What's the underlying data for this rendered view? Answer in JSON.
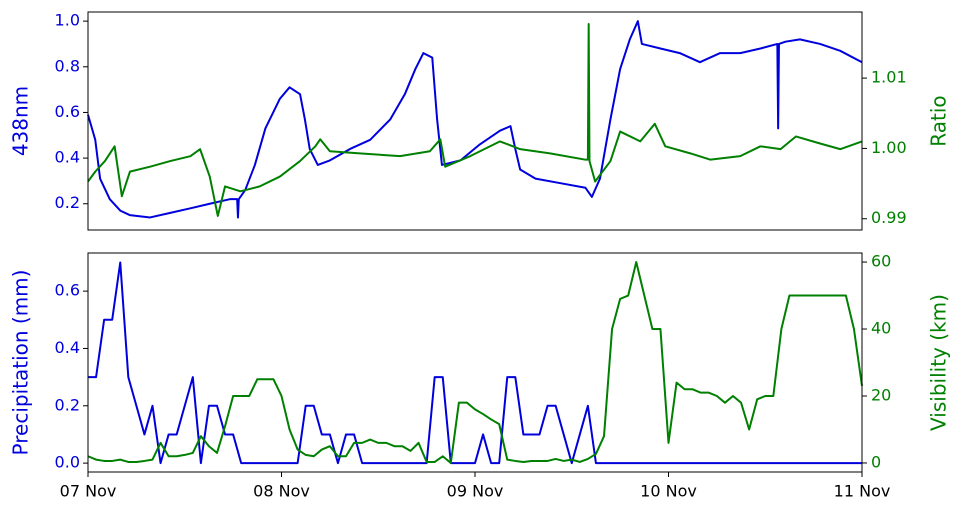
{
  "chart_data": [
    {
      "type": "line",
      "ylabel": "438nm",
      "y2label": "Ratio",
      "xlim": [
        0,
        96
      ],
      "ylim": [
        0.085,
        1.04
      ],
      "yticks": [
        0.2,
        0.4,
        0.6,
        0.8,
        {
          "value": 1,
          "label": "1.0"
        }
      ],
      "y2lim": [
        0.9884,
        1.0194
      ],
      "y2ticks": [
        0.99,
        {
          "value": 1,
          "label": "1.00"
        },
        1.01
      ],
      "series": [
        {
          "name": "438nm",
          "color": "#0000dd",
          "axis": "y",
          "x": [
            0,
            0.9,
            1.5,
            2.7,
            4.0,
            5.2,
            7.7,
            10.2,
            12.7,
            15.1,
            17.6,
            18.5,
            18.6,
            18.7,
            19.5,
            20.7,
            22.0,
            23.8,
            25.0,
            26.3,
            26.9,
            27.5,
            28.5,
            30.0,
            32.5,
            35.0,
            37.5,
            39.3,
            40.6,
            41.6,
            42.7,
            43.3,
            43.9,
            46.2,
            48.6,
            51.1,
            52.4,
            53.0,
            53.6,
            55.5,
            58.6,
            61.7,
            62.5,
            63.5,
            64.8,
            66.0,
            67.2,
            68.2,
            68.7,
            71.0,
            73.4,
            75.9,
            78.4,
            80.9,
            83.4,
            85.5,
            85.6,
            85.7,
            86.5,
            88.3,
            90.8,
            93.3,
            96
          ],
          "values": [
            0.59,
            0.48,
            0.31,
            0.22,
            0.17,
            0.15,
            0.14,
            0.16,
            0.18,
            0.2,
            0.22,
            0.22,
            0.14,
            0.22,
            0.26,
            0.37,
            0.53,
            0.66,
            0.71,
            0.68,
            0.57,
            0.44,
            0.37,
            0.39,
            0.44,
            0.48,
            0.57,
            0.68,
            0.79,
            0.86,
            0.84,
            0.57,
            0.37,
            0.39,
            0.46,
            0.52,
            0.54,
            0.44,
            0.35,
            0.31,
            0.29,
            0.27,
            0.23,
            0.31,
            0.57,
            0.79,
            0.92,
            1.0,
            0.9,
            0.88,
            0.86,
            0.82,
            0.86,
            0.86,
            0.88,
            0.9,
            0.53,
            0.9,
            0.91,
            0.92,
            0.9,
            0.87,
            0.82
          ]
        },
        {
          "name": "Ratio",
          "color": "#008000",
          "axis": "y2",
          "x": [
            0,
            0.9,
            2.1,
            3.3,
            4.2,
            5.2,
            7.7,
            10.2,
            12.7,
            13.9,
            15.1,
            16.1,
            17.0,
            18.9,
            21.3,
            23.8,
            26.3,
            28.2,
            28.8,
            30.0,
            33.7,
            38.7,
            42.4,
            43.7,
            44.3,
            47.4,
            51.1,
            53.6,
            57.3,
            61.7,
            62.0,
            62.1,
            62.2,
            62.9,
            64.8,
            66.0,
            68.5,
            70.3,
            71.6,
            74.7,
            77.2,
            80.9,
            83.4,
            85.9,
            87.8,
            90.8,
            93.3,
            96
          ],
          "values": [
            0.9953,
            0.9967,
            0.9982,
            1.0003,
            0.9932,
            0.9967,
            0.9974,
            0.9982,
            0.9989,
            0.9999,
            0.996,
            0.9904,
            0.9946,
            0.9939,
            0.9946,
            0.996,
            0.9982,
            1.0003,
            1.0013,
            0.9996,
            0.9993,
            0.9989,
            0.9996,
            1.0013,
            0.9974,
            0.9989,
            1.001,
            0.9999,
            0.9993,
            0.9984,
            0.9984,
            1.0177,
            0.9982,
            0.9953,
            0.9982,
            1.0024,
            1.001,
            1.0035,
            1.0003,
            0.9993,
            0.9984,
            0.9989,
            1.0003,
            0.9999,
            1.0017,
            1.0007,
            0.9999,
            1.001
          ]
        }
      ]
    },
    {
      "type": "line",
      "ylabel": "Precipitation (mm)",
      "y2label": "Visibility (km)",
      "xlim": [
        0,
        96
      ],
      "xticks": [
        {
          "value": 0,
          "label": "07 Nov"
        },
        {
          "value": 24,
          "label": "08 Nov"
        },
        {
          "value": 48,
          "label": "09 Nov"
        },
        {
          "value": 72,
          "label": "10 Nov"
        },
        {
          "value": 96,
          "label": "11 Nov"
        }
      ],
      "ylim": [
        -0.031,
        0.733
      ],
      "yticks": [
        {
          "value": 0,
          "label": "0.0"
        },
        0.2,
        0.4,
        0.6
      ],
      "y2lim": [
        -2.7,
        62.7
      ],
      "y2ticks": [
        0,
        20,
        40,
        60
      ],
      "x": [
        0,
        1,
        2,
        3,
        4,
        5,
        6,
        7,
        8,
        9,
        10,
        11,
        12,
        13,
        14,
        15,
        16,
        17,
        18,
        19,
        20,
        21,
        22,
        23,
        24,
        25,
        26,
        27,
        28,
        29,
        30,
        31,
        32,
        33,
        34,
        35,
        36,
        37,
        38,
        39,
        40,
        41,
        42,
        43,
        44,
        45,
        46,
        47,
        48,
        49,
        50,
        51,
        52,
        53,
        54,
        55,
        56,
        57,
        58,
        59,
        60,
        61,
        62,
        63,
        64,
        65,
        66,
        67,
        68,
        69,
        70,
        71,
        72,
        73,
        74,
        75,
        76,
        77,
        78,
        79,
        80,
        81,
        82,
        83,
        84,
        85,
        86,
        87,
        88,
        89,
        90,
        91,
        92,
        93,
        94,
        95,
        96
      ],
      "series": [
        {
          "name": "Precipitation (mm)",
          "color": "#0000dd",
          "axis": "y",
          "values": [
            0.3,
            0.3,
            0.5,
            0.5,
            0.7,
            0.3,
            0.2,
            0.1,
            0.2,
            0,
            0.1,
            0.1,
            0.2,
            0.3,
            0,
            0.2,
            0.2,
            0.1,
            0.1,
            0,
            0,
            0,
            0,
            0,
            0,
            0,
            0,
            0.2,
            0.2,
            0.1,
            0.1,
            0,
            0.1,
            0.1,
            0,
            0,
            0,
            0,
            0,
            0,
            0,
            0,
            0,
            0.3,
            0.3,
            0,
            0,
            0,
            0,
            0.1,
            0,
            0,
            0.3,
            0.3,
            0.1,
            0.1,
            0.1,
            0.2,
            0.2,
            0.1,
            0,
            0.1,
            0.2,
            0,
            0,
            0,
            0,
            0,
            0,
            0,
            0,
            0,
            0,
            0,
            0,
            0,
            0,
            0,
            0,
            0,
            0,
            0,
            0,
            0,
            0,
            0,
            0,
            0,
            0,
            0,
            0,
            0,
            0,
            0,
            0,
            0,
            0
          ]
        },
        {
          "name": "Visibility (km)",
          "color": "#008000",
          "axis": "y2",
          "values": [
            2,
            1,
            0.6,
            0.6,
            1,
            0.3,
            0.3,
            0.6,
            1,
            6,
            2,
            2,
            2.4,
            3,
            8,
            5,
            3,
            11,
            20,
            20,
            20,
            25,
            25,
            25,
            20,
            10,
            4,
            2.4,
            2,
            4,
            5,
            2,
            2,
            6,
            6,
            7,
            6,
            6,
            5,
            5,
            3.6,
            6,
            0.3,
            0.3,
            2,
            0,
            18,
            18,
            16,
            14.6,
            13,
            11.6,
            1,
            0.6,
            0.3,
            0.6,
            0.6,
            0.6,
            1.2,
            0.6,
            1,
            0.3,
            1.2,
            2.7,
            8,
            40,
            49,
            50,
            60,
            50,
            40,
            40,
            6,
            24,
            22,
            22,
            21,
            21,
            20,
            18,
            20,
            18,
            10,
            19,
            20,
            20,
            40,
            50,
            50,
            50,
            50,
            50,
            50,
            50,
            50,
            40,
            23
          ]
        }
      ]
    }
  ]
}
